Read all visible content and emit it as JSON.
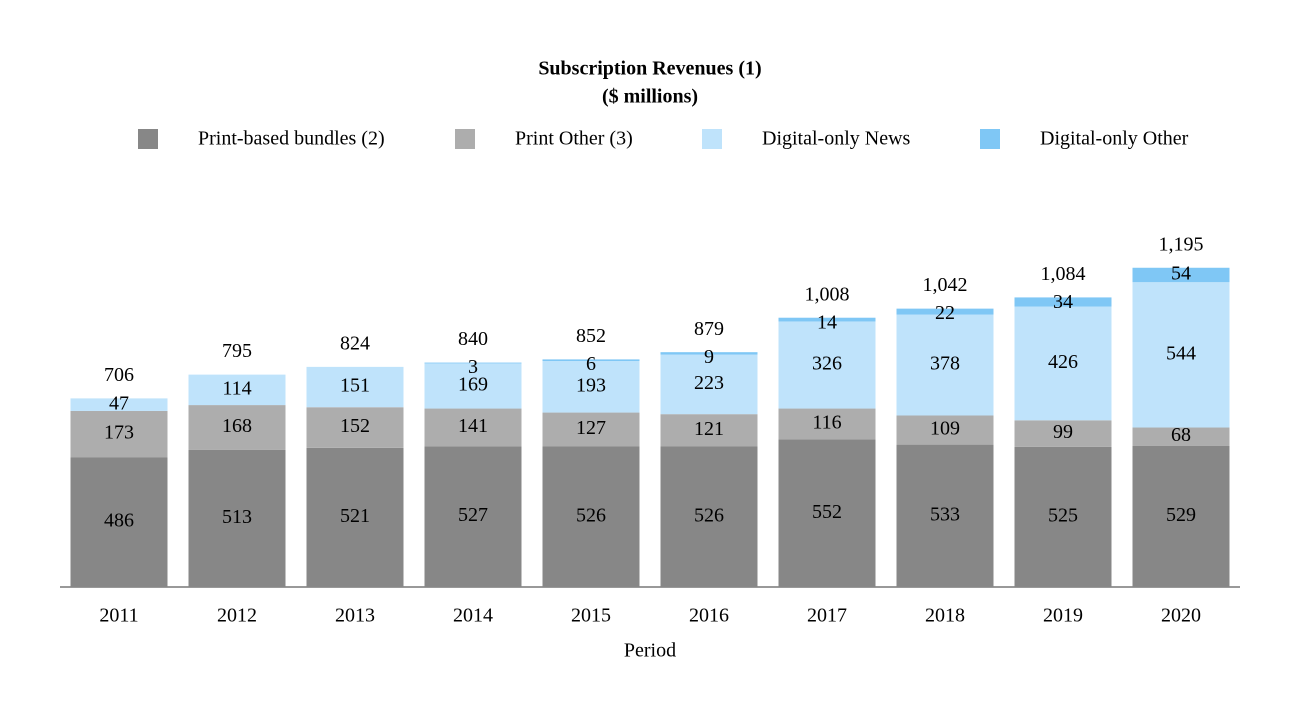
{
  "chart_data": {
    "type": "stacked_bar",
    "title": "Subscription Revenues (1)",
    "subtitle": "($ millions)",
    "x_label": "Period",
    "categories": [
      "2011",
      "2012",
      "2013",
      "2014",
      "2015",
      "2016",
      "2017",
      "2018",
      "2019",
      "2020"
    ],
    "series": [
      {
        "name": "Print-based bundles (2)",
        "color": "#878787",
        "values": [
          486,
          513,
          521,
          527,
          526,
          526,
          552,
          533,
          525,
          529
        ]
      },
      {
        "name": "Print Other (3)",
        "color": "#adadad",
        "values": [
          173,
          168,
          152,
          141,
          127,
          121,
          116,
          109,
          99,
          68
        ]
      },
      {
        "name": "Digital-only News",
        "color": "#bfe3fb",
        "values": [
          47,
          114,
          151,
          169,
          193,
          223,
          326,
          378,
          426,
          544
        ]
      },
      {
        "name": "Digital-only Other",
        "color": "#7fc7f5",
        "values": [
          null,
          null,
          null,
          3,
          6,
          9,
          14,
          22,
          34,
          54
        ]
      }
    ],
    "totals": {
      "values": [
        706,
        795,
        824,
        840,
        852,
        879,
        1008,
        1042,
        1084,
        1195
      ],
      "value_labels": [
        "706",
        "795",
        "824",
        "840",
        "852",
        "879",
        "1,008",
        "1,042",
        "1,084",
        "1,195"
      ]
    },
    "ylim": [
      0,
      1400
    ],
    "legend": "top"
  }
}
